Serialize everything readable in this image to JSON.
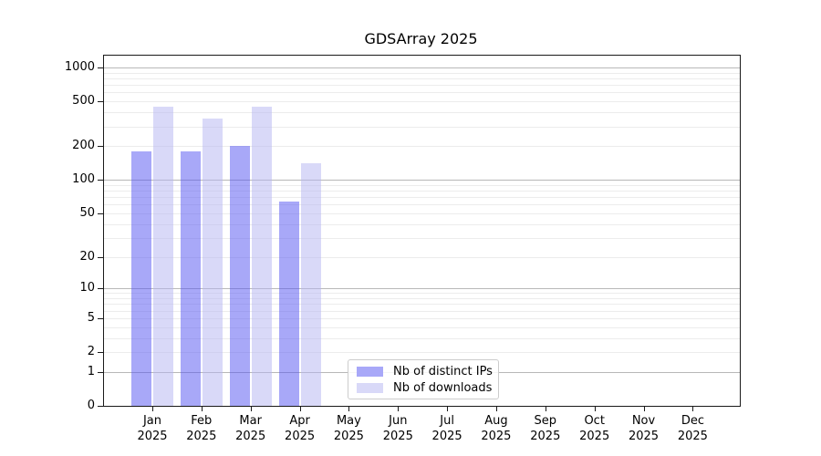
{
  "chart_data": {
    "type": "bar",
    "title": "GDSArray 2025",
    "months": [
      "Jan",
      "Feb",
      "Mar",
      "Apr",
      "May",
      "Jun",
      "Jul",
      "Aug",
      "Sep",
      "Oct",
      "Nov",
      "Dec"
    ],
    "year": "2025",
    "categories": [
      "Jan 2025",
      "Feb 2025",
      "Mar 2025",
      "Apr 2025",
      "May 2025",
      "Jun 2025",
      "Jul 2025",
      "Aug 2025",
      "Sep 2025",
      "Oct 2025",
      "Nov 2025",
      "Dec 2025"
    ],
    "series": [
      {
        "name": "Nb of distinct IPs",
        "key": "distinct-ips",
        "color": "rgba(81,81,241,0.5)",
        "color_solid": "#a8a8f8",
        "values": [
          180,
          178,
          202,
          64,
          0,
          0,
          0,
          0,
          0,
          0,
          0,
          0
        ]
      },
      {
        "name": "Nb of downloads",
        "key": "downloads",
        "color": "rgba(179,179,241,0.5)",
        "color_solid": "#d9d9f8",
        "values": [
          450,
          355,
          445,
          140,
          0,
          0,
          0,
          0,
          0,
          0,
          0,
          0
        ]
      }
    ],
    "yscale": "log1p",
    "yticks": [
      0,
      1,
      2,
      5,
      10,
      20,
      50,
      100,
      200,
      500,
      1000
    ],
    "ylim": [
      0,
      1274
    ],
    "grid": true,
    "grid_major_color": "#b8b8b8",
    "grid_minor_color": "#ececec",
    "legend_position": "lower center"
  }
}
